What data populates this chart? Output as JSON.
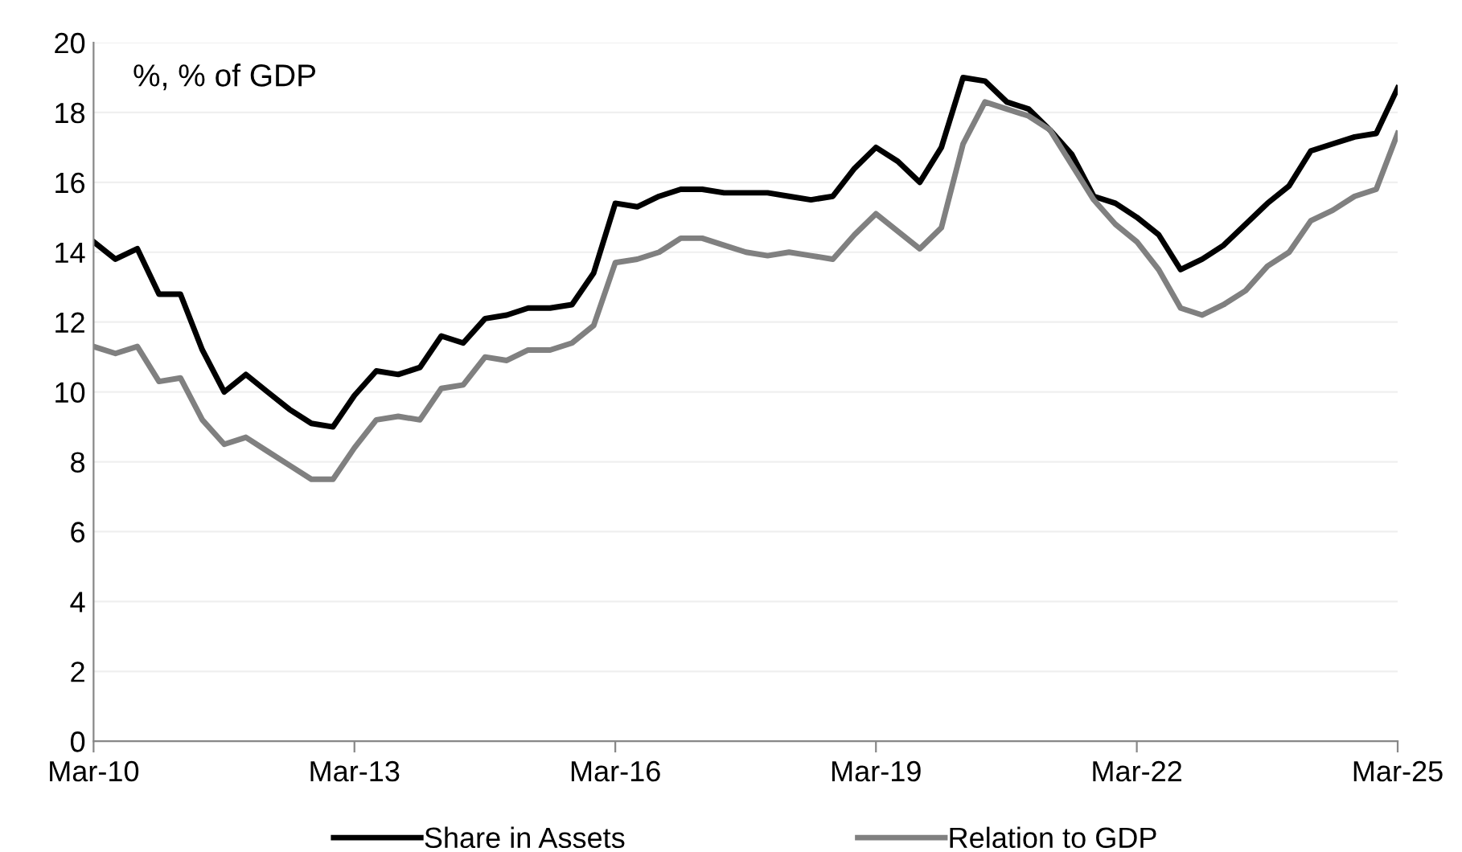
{
  "chart_data": {
    "type": "line",
    "annotations": [
      "%, % of GDP"
    ],
    "x": [
      "2010-03",
      "2010-06",
      "2010-09",
      "2010-12",
      "2011-03",
      "2011-06",
      "2011-09",
      "2011-12",
      "2012-03",
      "2012-06",
      "2012-09",
      "2012-12",
      "2013-03",
      "2013-06",
      "2013-09",
      "2013-12",
      "2014-03",
      "2014-06",
      "2014-09",
      "2014-12",
      "2015-03",
      "2015-06",
      "2015-09",
      "2015-12",
      "2016-03",
      "2016-06",
      "2016-09",
      "2016-12",
      "2017-03",
      "2017-06",
      "2017-09",
      "2017-12",
      "2018-03",
      "2018-06",
      "2018-09",
      "2018-12",
      "2019-03",
      "2019-06",
      "2019-09",
      "2019-12",
      "2020-03",
      "2020-06",
      "2020-09",
      "2020-12",
      "2021-03",
      "2021-06",
      "2021-09",
      "2021-12",
      "2022-03",
      "2022-06",
      "2022-09",
      "2022-12",
      "2023-03",
      "2023-06",
      "2023-09",
      "2023-12",
      "2024-03",
      "2024-06",
      "2024-09",
      "2024-12",
      "2025-03"
    ],
    "series": [
      {
        "name": "Share in Assets",
        "color": "#000000",
        "values": [
          14.3,
          13.8,
          14.1,
          12.8,
          12.8,
          11.2,
          10.0,
          10.5,
          10.0,
          9.5,
          9.1,
          9.0,
          9.9,
          10.6,
          10.5,
          10.7,
          11.6,
          11.4,
          12.1,
          12.2,
          12.4,
          12.4,
          12.5,
          13.4,
          15.4,
          15.3,
          15.6,
          15.8,
          15.8,
          15.7,
          15.7,
          15.7,
          15.6,
          15.5,
          15.6,
          16.4,
          17.0,
          16.6,
          16.0,
          17.0,
          19.0,
          18.9,
          18.3,
          18.1,
          17.5,
          16.8,
          15.6,
          15.4,
          15.0,
          14.5,
          13.5,
          13.8,
          14.2,
          14.8,
          15.4,
          15.9,
          16.9,
          17.1,
          17.3,
          17.4,
          18.7
        ]
      },
      {
        "name": "Relation to GDP",
        "color": "#808080",
        "values": [
          11.3,
          11.1,
          11.3,
          10.3,
          10.4,
          9.2,
          8.5,
          8.7,
          8.3,
          7.9,
          7.5,
          7.5,
          8.4,
          9.2,
          9.3,
          9.2,
          10.1,
          10.2,
          11.0,
          10.9,
          11.2,
          11.2,
          11.4,
          11.9,
          13.7,
          13.8,
          14.0,
          14.4,
          14.4,
          14.2,
          14.0,
          13.9,
          14.0,
          13.9,
          13.8,
          14.5,
          15.1,
          14.6,
          14.1,
          14.7,
          17.1,
          18.3,
          18.1,
          17.9,
          17.5,
          16.5,
          15.5,
          14.8,
          14.3,
          13.5,
          12.4,
          12.2,
          12.5,
          12.9,
          13.6,
          14.0,
          14.9,
          15.2,
          15.6,
          15.8,
          17.4
        ]
      }
    ],
    "xlim": [
      "2010-03",
      "2025-03"
    ],
    "xticks": [
      {
        "value": "2010-03",
        "label": "Mar-10"
      },
      {
        "value": "2013-03",
        "label": "Mar-13"
      },
      {
        "value": "2016-03",
        "label": "Mar-16"
      },
      {
        "value": "2019-03",
        "label": "Mar-19"
      },
      {
        "value": "2022-03",
        "label": "Mar-22"
      },
      {
        "value": "2025-03",
        "label": "Mar-25"
      }
    ],
    "ylim": [
      0,
      20
    ],
    "yticks": [
      0,
      2,
      4,
      6,
      8,
      10,
      12,
      14,
      16,
      18,
      20
    ],
    "grid": "y",
    "legend": "bottom",
    "line_style": "solid",
    "marker": "none"
  }
}
